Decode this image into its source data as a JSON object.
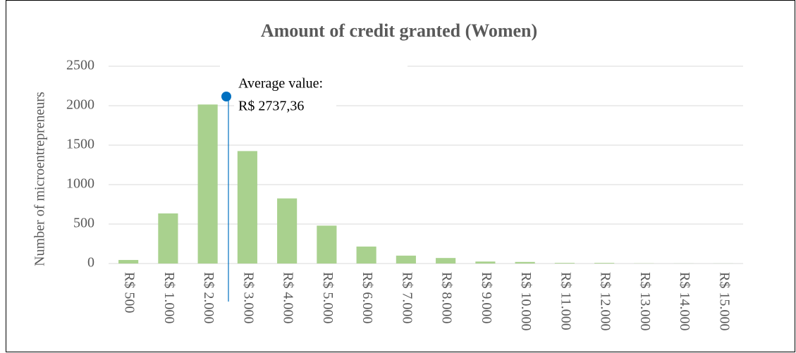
{
  "chart_data": {
    "type": "bar",
    "title": "Amount of credit granted (Women)",
    "y_label": "Number of microentrepreneurs",
    "categories": [
      "R$ 500",
      "R$ 1.000",
      "R$ 2.000",
      "R$ 3.000",
      "R$ 4.000",
      "R$ 5.000",
      "R$ 6.000",
      "R$ 7.000",
      "R$ 8.000",
      "R$ 9.000",
      "R$ 10.000",
      "R$ 11.000",
      "R$ 12.000",
      "R$ 13.000",
      "R$ 14.000",
      "R$ 15.000"
    ],
    "values": [
      45,
      635,
      2015,
      1425,
      825,
      480,
      215,
      100,
      70,
      25,
      20,
      8,
      8,
      2,
      1,
      1
    ],
    "color": "#a9d18e",
    "ylim": [
      0,
      2500
    ],
    "yticks": [
      0,
      500,
      1000,
      1500,
      2000,
      2500
    ],
    "grid": true,
    "annotation": [
      "Average value:",
      "R$ 2737,36"
    ],
    "annotation_color": "#0070c0"
  }
}
